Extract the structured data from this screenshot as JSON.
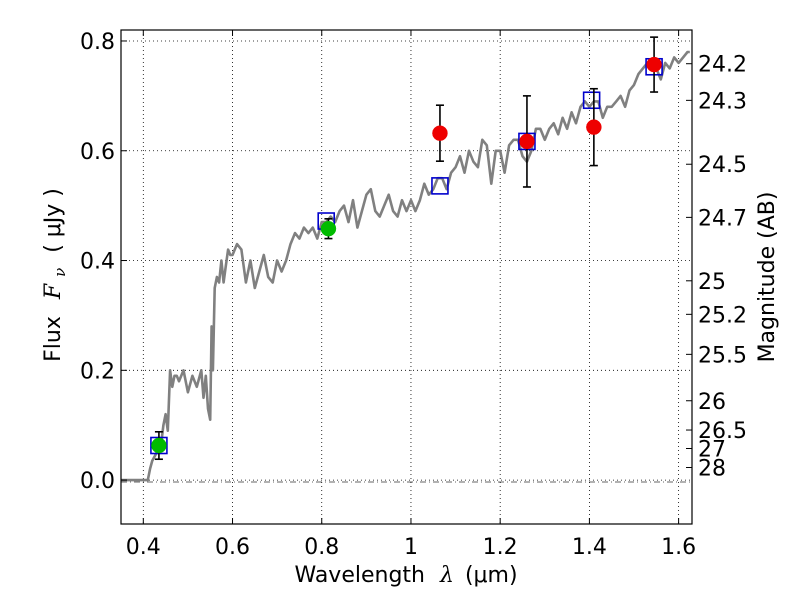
{
  "chart_data": {
    "type": "scatter",
    "xlabel": {
      "prefix": "Wavelength",
      "symbol": "λ",
      "unit": "(μm)"
    },
    "ylabel": {
      "prefix": "Flux",
      "symbol": "F",
      "subscript": "ν",
      "unit": "( μJy )"
    },
    "y2label": "Magnitude (AB)",
    "xlim": [
      0.35,
      1.63
    ],
    "ylim": [
      -0.08,
      0.82
    ],
    "grid": true,
    "x_ticks": [
      {
        "value": 0.4,
        "label": "0.4"
      },
      {
        "value": 0.6,
        "label": "0.6"
      },
      {
        "value": 0.8,
        "label": "0.8"
      },
      {
        "value": 1.0,
        "label": "1"
      },
      {
        "value": 1.2,
        "label": "1.2"
      },
      {
        "value": 1.4,
        "label": "1.4"
      },
      {
        "value": 1.6,
        "label": "1.6"
      }
    ],
    "y_ticks": [
      {
        "value": 0.0,
        "label": "0.0"
      },
      {
        "value": 0.2,
        "label": "0.2"
      },
      {
        "value": 0.4,
        "label": "0.4"
      },
      {
        "value": 0.6,
        "label": "0.6"
      },
      {
        "value": 0.8,
        "label": "0.8"
      }
    ],
    "mag_ticks": [
      {
        "value": 24.2,
        "label": "24.2"
      },
      {
        "value": 24.3,
        "label": "24.3"
      },
      {
        "value": 24.5,
        "label": "24.5"
      },
      {
        "value": 24.7,
        "label": "24.7"
      },
      {
        "value": 25.0,
        "label": "25"
      },
      {
        "value": 25.2,
        "label": "25.2"
      },
      {
        "value": 25.5,
        "label": "25.5"
      },
      {
        "value": 26.0,
        "label": "26"
      },
      {
        "value": 26.5,
        "label": "26.5"
      },
      {
        "value": 27.0,
        "label": "27"
      },
      {
        "value": 28.0,
        "label": "28"
      }
    ],
    "series": [
      {
        "kind": "spectrum",
        "color": "#808080",
        "x": [
          0.35,
          0.41,
          0.415,
          0.42,
          0.43,
          0.44,
          0.445,
          0.45,
          0.455,
          0.46,
          0.465,
          0.47,
          0.475,
          0.48,
          0.49,
          0.5,
          0.51,
          0.52,
          0.53,
          0.535,
          0.54,
          0.545,
          0.55,
          0.553,
          0.556,
          0.56,
          0.565,
          0.57,
          0.575,
          0.58,
          0.585,
          0.59,
          0.595,
          0.6,
          0.61,
          0.62,
          0.63,
          0.64,
          0.65,
          0.66,
          0.67,
          0.68,
          0.69,
          0.7,
          0.71,
          0.72,
          0.73,
          0.74,
          0.75,
          0.76,
          0.77,
          0.78,
          0.79,
          0.8,
          0.81,
          0.82,
          0.83,
          0.84,
          0.85,
          0.86,
          0.87,
          0.88,
          0.89,
          0.9,
          0.91,
          0.92,
          0.93,
          0.94,
          0.95,
          0.96,
          0.97,
          0.98,
          0.99,
          1.0,
          1.01,
          1.02,
          1.03,
          1.04,
          1.05,
          1.06,
          1.07,
          1.08,
          1.09,
          1.1,
          1.11,
          1.12,
          1.13,
          1.14,
          1.15,
          1.16,
          1.17,
          1.18,
          1.19,
          1.2,
          1.21,
          1.22,
          1.23,
          1.24,
          1.25,
          1.26,
          1.27,
          1.28,
          1.29,
          1.3,
          1.31,
          1.32,
          1.33,
          1.34,
          1.35,
          1.36,
          1.37,
          1.38,
          1.39,
          1.4,
          1.41,
          1.42,
          1.43,
          1.44,
          1.45,
          1.46,
          1.47,
          1.48,
          1.49,
          1.5,
          1.51,
          1.52,
          1.53,
          1.54,
          1.55,
          1.56,
          1.57,
          1.58,
          1.59,
          1.6,
          1.61,
          1.62,
          1.625
        ],
        "y": [
          0.0,
          0.0,
          0.02,
          0.035,
          0.05,
          0.065,
          0.1,
          0.12,
          0.09,
          0.2,
          0.17,
          0.19,
          0.19,
          0.18,
          0.2,
          0.16,
          0.19,
          0.17,
          0.2,
          0.15,
          0.19,
          0.13,
          0.11,
          0.28,
          0.2,
          0.35,
          0.37,
          0.36,
          0.4,
          0.36,
          0.39,
          0.42,
          0.41,
          0.41,
          0.43,
          0.42,
          0.36,
          0.4,
          0.35,
          0.38,
          0.41,
          0.37,
          0.36,
          0.4,
          0.38,
          0.4,
          0.43,
          0.45,
          0.44,
          0.46,
          0.45,
          0.46,
          0.44,
          0.47,
          0.47,
          0.48,
          0.47,
          0.49,
          0.5,
          0.47,
          0.51,
          0.46,
          0.49,
          0.52,
          0.53,
          0.49,
          0.48,
          0.5,
          0.52,
          0.49,
          0.48,
          0.51,
          0.49,
          0.51,
          0.49,
          0.51,
          0.54,
          0.52,
          0.53,
          0.55,
          0.55,
          0.53,
          0.56,
          0.57,
          0.59,
          0.56,
          0.6,
          0.58,
          0.57,
          0.62,
          0.61,
          0.54,
          0.6,
          0.6,
          0.56,
          0.61,
          0.62,
          0.62,
          0.59,
          0.58,
          0.6,
          0.64,
          0.64,
          0.62,
          0.64,
          0.65,
          0.63,
          0.66,
          0.64,
          0.67,
          0.65,
          0.68,
          0.69,
          0.68,
          0.69,
          0.69,
          0.66,
          0.68,
          0.68,
          0.69,
          0.7,
          0.68,
          0.71,
          0.72,
          0.74,
          0.75,
          0.76,
          0.75,
          0.75,
          0.73,
          0.76,
          0.75,
          0.77,
          0.76,
          0.77,
          0.78,
          0.78
        ]
      },
      {
        "kind": "open-squares",
        "color": "#0000cc",
        "points": [
          {
            "x": 0.435,
            "y": 0.063
          },
          {
            "x": 0.81,
            "y": 0.472
          },
          {
            "x": 1.065,
            "y": 0.536
          },
          {
            "x": 1.26,
            "y": 0.617
          },
          {
            "x": 1.405,
            "y": 0.692
          },
          {
            "x": 1.545,
            "y": 0.753
          }
        ]
      },
      {
        "kind": "filled-circles",
        "color": "#00bb00",
        "points": [
          {
            "x": 0.435,
            "y": 0.063,
            "err": 0.025
          },
          {
            "x": 0.815,
            "y": 0.458,
            "err": 0.018
          }
        ]
      },
      {
        "kind": "filled-circles",
        "color": "#ee0000",
        "points": [
          {
            "x": 1.065,
            "y": 0.632,
            "err": 0.051
          },
          {
            "x": 1.26,
            "y": 0.617,
            "err": 0.083
          },
          {
            "x": 1.41,
            "y": 0.643,
            "err": 0.07
          },
          {
            "x": 1.545,
            "y": 0.757,
            "err": 0.05
          }
        ]
      }
    ]
  }
}
